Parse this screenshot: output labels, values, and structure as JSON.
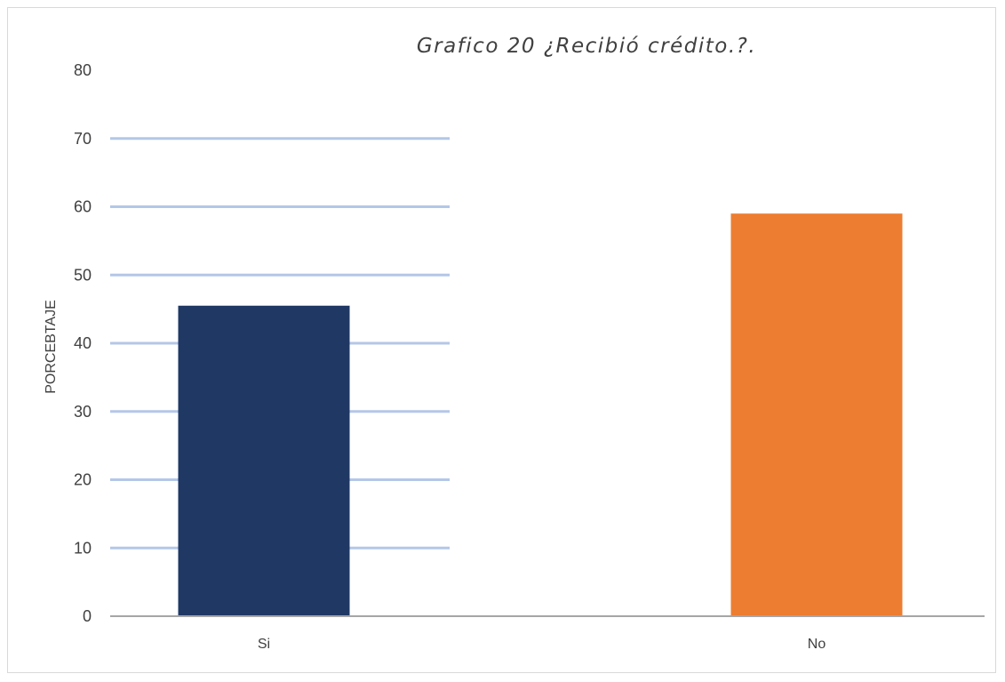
{
  "chart_data": {
    "type": "bar",
    "title": "Grafico 20 ¿Recibió crédito.?.",
    "xlabel": "",
    "ylabel": "PORCEBTAJE",
    "categories": [
      "Si",
      "No"
    ],
    "values": [
      45.5,
      59
    ],
    "bar_colors": [
      "#203864",
      "#ed7d31"
    ],
    "ylim": [
      0,
      80
    ],
    "yticks": [
      0,
      10,
      20,
      30,
      40,
      50,
      60,
      70,
      80
    ],
    "grid": "horizontal",
    "gridline_color": "#b4c7e7",
    "axis_color": "#a6a6a6",
    "legend": "none"
  }
}
